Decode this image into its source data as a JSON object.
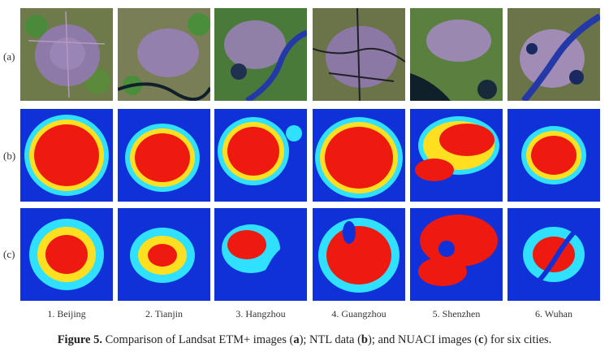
{
  "row_labels": {
    "a": "(a)",
    "b": "(b)",
    "c": "(c)"
  },
  "cities": [
    "1. Beijing",
    "2. Tianjin",
    "3. Hangzhou",
    "4. Guangzhou",
    "5. Shenzhen",
    "6. Wuhan"
  ],
  "caption": {
    "label": "Figure 5.",
    "t1": " Comparison of Landsat ETM+ images (",
    "a": "a",
    "t2": "); NTL data (",
    "b": "b",
    "t3": "); and NUACI images (",
    "c": "c",
    "t4": ") for six cities."
  },
  "colors": {
    "landsat_bg": "#6e7a4a",
    "landsat_urban": "#8e7aa8",
    "landsat_veg": "#3f8a3a",
    "water": "#2438a8",
    "heat_low": "#1030d8",
    "heat_mid": "#30e0ff",
    "heat_hi": "#ffe020",
    "heat_max": "#ee1a10"
  }
}
